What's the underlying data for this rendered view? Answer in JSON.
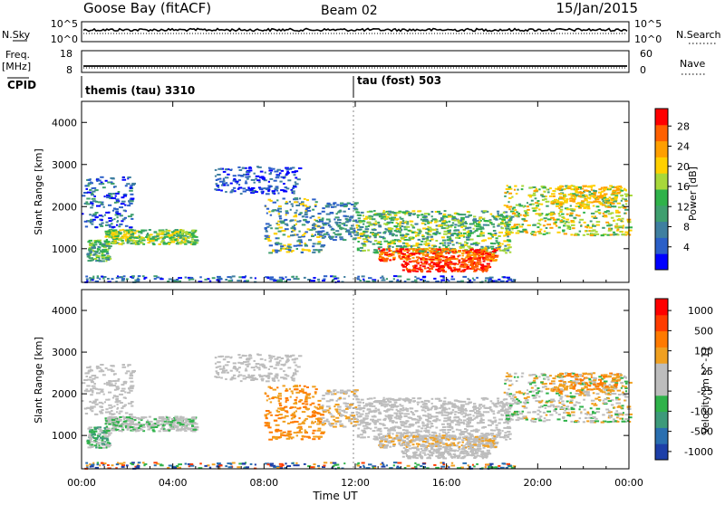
{
  "header": {
    "site": "Goose Bay (fitACF)",
    "beam": "Beam 02",
    "date": "15/Jan/2015"
  },
  "noise": {
    "left_label": "N.Sky",
    "right_label": "N.Search",
    "ticks_left": [
      "10^5",
      "10^0"
    ],
    "ticks_right": [
      "10^5",
      "10^0"
    ]
  },
  "freq": {
    "left_label_1": "Freq.",
    "left_label_2": "[MHz]",
    "right_label": "Nave",
    "ticks_left": [
      "18",
      "8"
    ],
    "ticks_right": [
      "60",
      "0"
    ]
  },
  "cpid": {
    "label": "CPID",
    "segments": [
      "themis (tau) 3310",
      "tau (fost) 503"
    ]
  },
  "time_axis": {
    "title": "Time UT",
    "ticks": [
      "00:00",
      "04:00",
      "08:00",
      "12:00",
      "16:00",
      "20:00",
      "00:00"
    ]
  },
  "chart_data": [
    {
      "type": "heatmap",
      "title": "",
      "xlabel": "",
      "ylabel": "Slant Range [km]",
      "x_range_hours": [
        0,
        24
      ],
      "ylim": [
        200,
        4500
      ],
      "yticks": [
        "1000",
        "2000",
        "3000",
        "4000"
      ],
      "colorbar": {
        "label": "Power [dB]",
        "ticks": [
          "4",
          "8",
          "12",
          "16",
          "20",
          "24",
          "28"
        ],
        "colors": [
          "#0000ff",
          "#2b5fc8",
          "#3f7fa0",
          "#3f9f6f",
          "#2fb24a",
          "#a8d83a",
          "#ffd000",
          "#ff9f00",
          "#ff6000",
          "#ff0000"
        ]
      }
    },
    {
      "type": "heatmap",
      "title": "",
      "xlabel": "Time UT",
      "ylabel": "Slant Range [km]",
      "x_range_hours": [
        0,
        24
      ],
      "ylim": [
        200,
        4500
      ],
      "yticks": [
        "1000",
        "2000",
        "3000",
        "4000"
      ],
      "colorbar": {
        "label": "Velocity [m s^-1]",
        "ticks": [
          "1000",
          "500",
          "100",
          "25",
          "-25",
          "-100",
          "-500",
          "-1000"
        ],
        "colors": [
          "#1d3fa8",
          "#2a6fb0",
          "#3d9a7a",
          "#2fb24a",
          "#bdbdbd",
          "#bdbdbd",
          "#f0a020",
          "#ff7a00",
          "#ff3c00",
          "#ff0000"
        ]
      }
    }
  ]
}
